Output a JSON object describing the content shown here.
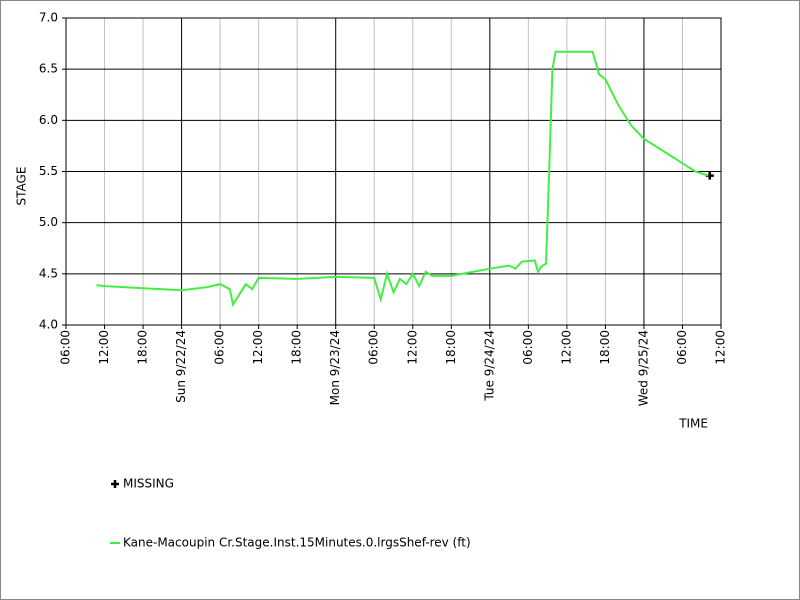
{
  "chart_data": {
    "type": "line",
    "ylabel": "STAGE",
    "xlabel": "TIME",
    "xlim": [
      "2024-09-21T06:00",
      "2024-09-25T12:00"
    ],
    "xticks": [
      {
        "value": "2024-09-21T06:00",
        "label": "06:00"
      },
      {
        "value": "2024-09-21T12:00",
        "label": "12:00"
      },
      {
        "value": "2024-09-21T18:00",
        "label": "18:00"
      },
      {
        "value": "2024-09-22T00:00",
        "label": "Sun 9/22/24"
      },
      {
        "value": "2024-09-22T06:00",
        "label": "06:00"
      },
      {
        "value": "2024-09-22T12:00",
        "label": "12:00"
      },
      {
        "value": "2024-09-22T18:00",
        "label": "18:00"
      },
      {
        "value": "2024-09-23T00:00",
        "label": "Mon 9/23/24"
      },
      {
        "value": "2024-09-23T06:00",
        "label": "06:00"
      },
      {
        "value": "2024-09-23T12:00",
        "label": "12:00"
      },
      {
        "value": "2024-09-23T18:00",
        "label": "18:00"
      },
      {
        "value": "2024-09-24T00:00",
        "label": "Tue 9/24/24"
      },
      {
        "value": "2024-09-24T06:00",
        "label": "06:00"
      },
      {
        "value": "2024-09-24T12:00",
        "label": "12:00"
      },
      {
        "value": "2024-09-24T18:00",
        "label": "18:00"
      },
      {
        "value": "2024-09-25T00:00",
        "label": "Wed 9/25/24"
      },
      {
        "value": "2024-09-25T06:00",
        "label": "06:00"
      },
      {
        "value": "2024-09-25T12:00",
        "label": "12:00"
      }
    ],
    "ylim": [
      4,
      7
    ],
    "yticks": [
      {
        "value": 4,
        "label": "4.0"
      },
      {
        "value": 4.5,
        "label": "4.5"
      },
      {
        "value": 5,
        "label": "5.0"
      },
      {
        "value": 5.5,
        "label": "5.5"
      },
      {
        "value": 6,
        "label": "6.0"
      },
      {
        "value": 6.5,
        "label": "6.5"
      },
      {
        "value": 7,
        "label": "7.0"
      }
    ],
    "grid": true,
    "series": [
      {
        "name": "MISSING",
        "style": "markers",
        "color": "#000000",
        "x": [
          "2024-09-25T10:15"
        ],
        "values": [
          5.46
        ]
      },
      {
        "name": "Kane-Macoupin Cr.Stage.Inst.15Minutes.0.lrgsShef-rev (ft)",
        "style": "line",
        "color": "#44ee44",
        "x": [
          "2024-09-21T10:45",
          "2024-09-21T12:00",
          "2024-09-21T18:00",
          "2024-09-22T00:00",
          "2024-09-22T04:00",
          "2024-09-22T06:00",
          "2024-09-22T07:30",
          "2024-09-22T08:00",
          "2024-09-22T09:00",
          "2024-09-22T10:00",
          "2024-09-22T11:00",
          "2024-09-22T12:00",
          "2024-09-22T18:00",
          "2024-09-23T00:00",
          "2024-09-23T06:00",
          "2024-09-23T07:00",
          "2024-09-23T08:00",
          "2024-09-23T09:00",
          "2024-09-23T10:00",
          "2024-09-23T11:00",
          "2024-09-23T12:00",
          "2024-09-23T13:00",
          "2024-09-23T14:00",
          "2024-09-23T15:00",
          "2024-09-23T18:00",
          "2024-09-24T00:00",
          "2024-09-24T03:00",
          "2024-09-24T04:00",
          "2024-09-24T05:00",
          "2024-09-24T07:00",
          "2024-09-24T07:30",
          "2024-09-24T08:00",
          "2024-09-24T08:45",
          "2024-09-24T09:15",
          "2024-09-24T09:45",
          "2024-09-24T10:15",
          "2024-09-24T16:00",
          "2024-09-24T17:00",
          "2024-09-24T18:00",
          "2024-09-24T20:00",
          "2024-09-24T22:00",
          "2024-09-25T00:00",
          "2024-09-25T03:00",
          "2024-09-25T06:00",
          "2024-09-25T08:00",
          "2024-09-25T10:00"
        ],
        "values": [
          4.39,
          4.38,
          4.36,
          4.34,
          4.37,
          4.4,
          4.35,
          4.2,
          4.3,
          4.4,
          4.35,
          4.46,
          4.45,
          4.47,
          4.46,
          4.25,
          4.5,
          4.32,
          4.45,
          4.4,
          4.5,
          4.38,
          4.52,
          4.48,
          4.48,
          4.55,
          4.58,
          4.55,
          4.62,
          4.63,
          4.52,
          4.57,
          4.6,
          5.5,
          6.5,
          6.67,
          6.67,
          6.45,
          6.4,
          6.15,
          5.95,
          5.82,
          5.7,
          5.58,
          5.5,
          5.46
        ]
      }
    ]
  }
}
